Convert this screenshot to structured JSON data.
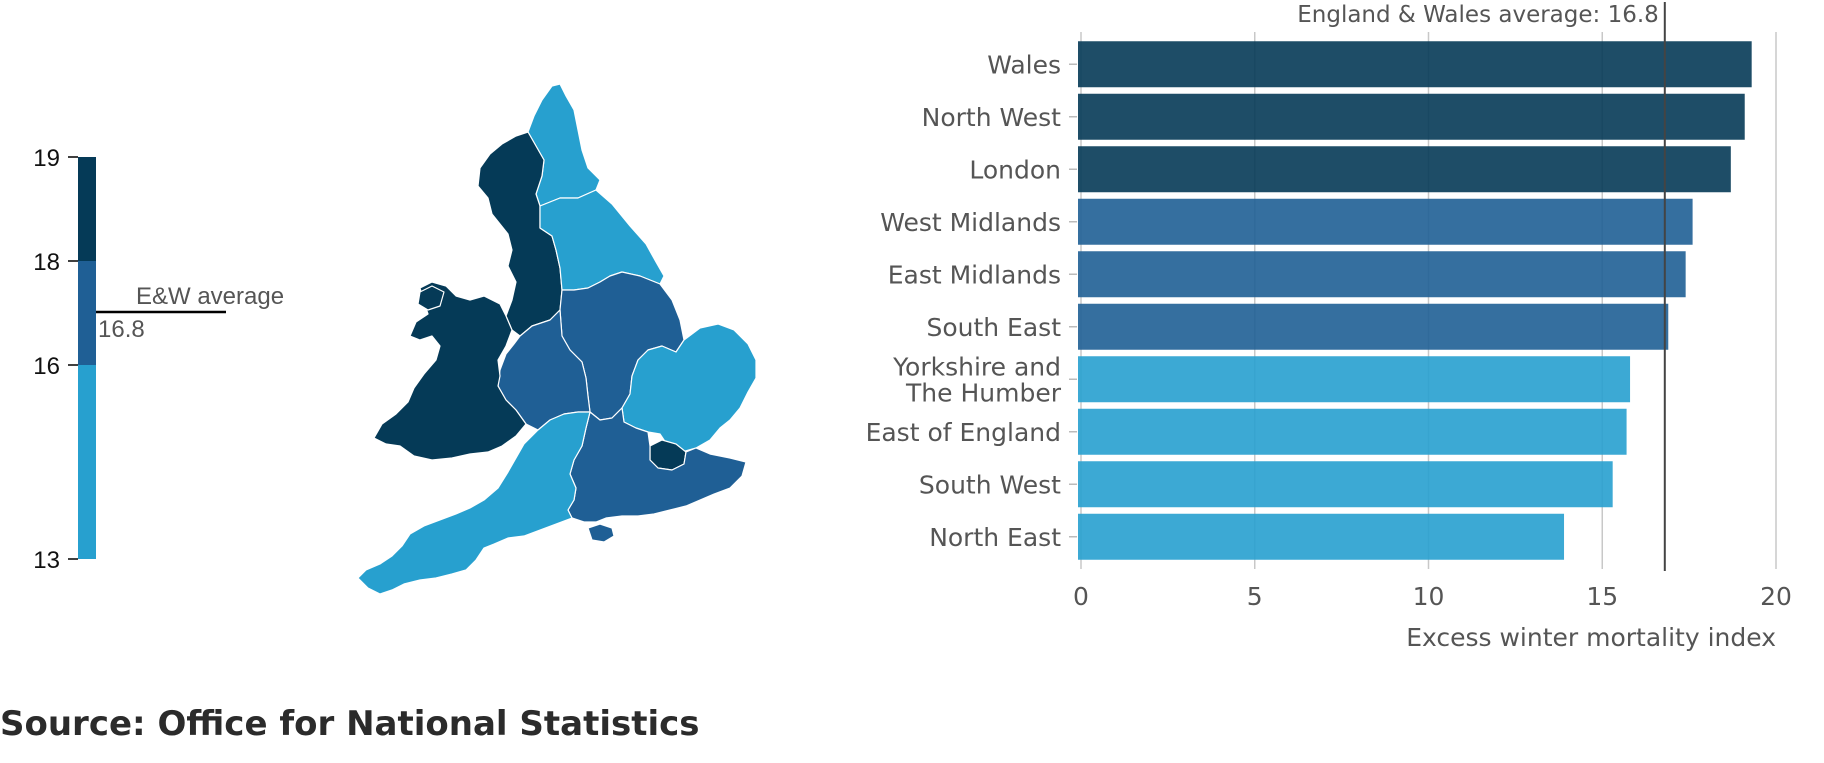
{
  "legend": {
    "ticks": [
      19,
      18,
      16,
      13
    ],
    "average_label": "E&W average",
    "average_value": "16.8",
    "bands": [
      {
        "from": 18,
        "to": 19,
        "color": "#053a57"
      },
      {
        "from": 16,
        "to": 18,
        "color": "#1f5f95"
      },
      {
        "from": 13,
        "to": 16,
        "color": "#27a0cf"
      }
    ]
  },
  "map": {
    "regions": [
      {
        "name": "North East",
        "band": "low"
      },
      {
        "name": "North West",
        "band": "high"
      },
      {
        "name": "Yorkshire and The Humber",
        "band": "low"
      },
      {
        "name": "East Midlands",
        "band": "mid"
      },
      {
        "name": "West Midlands",
        "band": "mid"
      },
      {
        "name": "East of England",
        "band": "low"
      },
      {
        "name": "London",
        "band": "high"
      },
      {
        "name": "South East",
        "band": "mid"
      },
      {
        "name": "South West",
        "band": "low"
      },
      {
        "name": "Wales",
        "band": "high"
      }
    ]
  },
  "chart_data": {
    "type": "bar",
    "orientation": "horizontal",
    "categories": [
      "Wales",
      "North West",
      "London",
      "West Midlands",
      "East Midlands",
      "South East",
      "Yorkshire and The Humber",
      "East of England",
      "South West",
      "North East"
    ],
    "category_lines": [
      [
        "Wales"
      ],
      [
        "North West"
      ],
      [
        "London"
      ],
      [
        "West Midlands"
      ],
      [
        "East Midlands"
      ],
      [
        "South East"
      ],
      [
        "Yorkshire and",
        "The Humber"
      ],
      [
        "East of England"
      ],
      [
        "South West"
      ],
      [
        "North East"
      ]
    ],
    "values": [
      19.3,
      19.1,
      18.7,
      17.6,
      17.4,
      16.9,
      15.8,
      15.7,
      15.3,
      13.9
    ],
    "colors": [
      "#053a57",
      "#053a57",
      "#053a57",
      "#1f5f95",
      "#1f5f95",
      "#1f5f95",
      "#27a0cf",
      "#27a0cf",
      "#27a0cf",
      "#27a0cf"
    ],
    "xlabel": "Excess winter mortality index",
    "xlim": [
      0,
      20
    ],
    "xticks": [
      0,
      5,
      10,
      15,
      20
    ],
    "average": {
      "value": 16.8,
      "label": "England & Wales average: 16.8"
    },
    "grid": true
  },
  "source": "Source: Office for National Statistics"
}
